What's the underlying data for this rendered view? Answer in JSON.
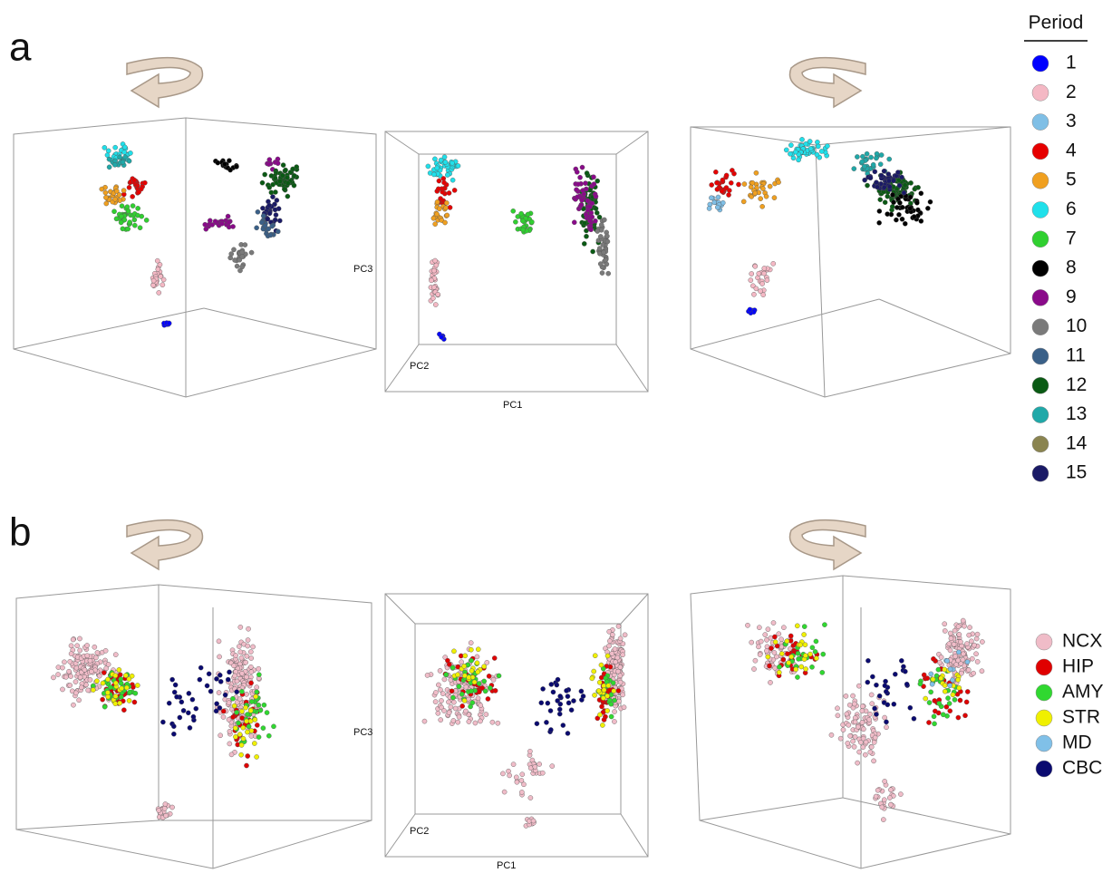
{
  "figure": {
    "panels": [
      {
        "label": "a",
        "axis_labels": {
          "x": "PC1",
          "y": "PC3",
          "z": "PC2"
        },
        "legend": {
          "title": "Period",
          "items": [
            {
              "label": "1",
              "color": "#0000ff"
            },
            {
              "label": "2",
              "color": "#f4b8c4"
            },
            {
              "label": "3",
              "color": "#7fbfe6"
            },
            {
              "label": "4",
              "color": "#e60000"
            },
            {
              "label": "5",
              "color": "#f0a020"
            },
            {
              "label": "6",
              "color": "#20e0ea"
            },
            {
              "label": "7",
              "color": "#30d030"
            },
            {
              "label": "8",
              "color": "#000000"
            },
            {
              "label": "9",
              "color": "#8a0a8a"
            },
            {
              "label": "10",
              "color": "#7a7a7a"
            },
            {
              "label": "11",
              "color": "#3a6088"
            },
            {
              "label": "12",
              "color": "#0a5a14"
            },
            {
              "label": "13",
              "color": "#20a8a8"
            },
            {
              "label": "14",
              "color": "#8a8450"
            },
            {
              "label": "15",
              "color": "#1a1a66"
            }
          ]
        }
      },
      {
        "label": "b",
        "axis_labels": {
          "x": "PC1",
          "y": "PC3",
          "z": "PC2"
        },
        "legend": {
          "items": [
            {
              "label": "NCX",
              "color": "#f0bcc8"
            },
            {
              "label": "HIP",
              "color": "#e00000"
            },
            {
              "label": "AMY",
              "color": "#30d830"
            },
            {
              "label": "STR",
              "color": "#f0f000"
            },
            {
              "label": "MD",
              "color": "#80c0e8"
            },
            {
              "label": "CBC",
              "color": "#0a0a70"
            }
          ]
        }
      }
    ]
  }
}
